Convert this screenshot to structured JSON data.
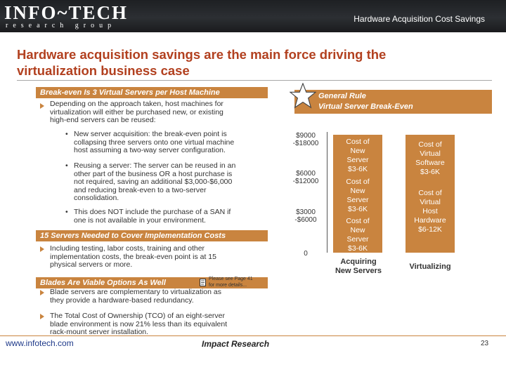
{
  "header": {
    "logo_main": "INFO~TECH",
    "logo_sub": "research group",
    "page_title": "Hardware Acquisition Cost Savings"
  },
  "slide": {
    "title_line1": "Hardware acquisition savings are the main force driving the",
    "title_line2": "virtualization business case"
  },
  "section1": {
    "heading": "Break-even Is 3 Virtual Servers per Host Machine",
    "bullet": {
      "lines": [
        "Depending on the approach taken, host machines for",
        "virtualization will either be purchased new, or existing",
        "high-end servers can be reused:"
      ]
    },
    "subbullets": [
      {
        "lines": [
          "New server acquisition: the break-even point is",
          "collapsing three servers onto one virtual machine",
          "host assuming a two-way server configuration."
        ]
      },
      {
        "lines": [
          "Reusing a server: The server can be reused in an",
          "other part of the business OR a host purchase is",
          "not required, saving an additional $3,000-$6,000",
          "and reducing break-even to a two-server",
          "consolidation."
        ]
      },
      {
        "lines": [
          "This does NOT include the purchase of a SAN if",
          "one is not available in your environment."
        ]
      }
    ]
  },
  "section2": {
    "heading": "15 Servers Needed to Cover Implementation Costs",
    "bullet": {
      "lines": [
        "Including testing, labor costs, training and other",
        "implementation costs, the break-even point is at 15",
        "physical servers or more."
      ]
    }
  },
  "section3": {
    "heading": "Blades Are Viable Options As Well",
    "note_line1": "Please see Page 41",
    "note_line2": "for more details...",
    "bullets": [
      {
        "lines": [
          "Blade servers are complementary to virtualization as",
          "they provide a hardware-based redundancy."
        ]
      },
      {
        "lines": [
          "The Total Cost of Ownership (TCO) of an eight-server",
          "blade environment is now 21% less than its equivalent",
          "rack-mount server installation."
        ]
      }
    ]
  },
  "general_rule": {
    "line1": "General Rule",
    "line2": "Virtual Server Break-Even"
  },
  "chart_data": {
    "type": "bar",
    "categories": [
      "Acquiring New Servers",
      "Virtualizing"
    ],
    "y_tick_labels": [
      {
        "line1": "$9000",
        "line2": "-$18000"
      },
      {
        "line1": "$6000",
        "line2": "-$12000"
      },
      {
        "line1": "$3000",
        "line2": "-$6000"
      },
      {
        "line1": "0",
        "line2": ""
      }
    ],
    "bars": [
      {
        "category": "Acquiring New Servers",
        "xlabel_lines": [
          "Acquiring",
          "New Servers"
        ],
        "segments": [
          {
            "lines": [
              "Cost of",
              "New",
              "Server",
              "$3-6K"
            ]
          },
          {
            "lines": [
              "Cost of",
              "New",
              "Server",
              "$3-6K"
            ]
          },
          {
            "lines": [
              "Cost of",
              "New",
              "Server",
              "$3-6K"
            ]
          }
        ]
      },
      {
        "category": "Virtualizing",
        "xlabel_lines": [
          "Virtualizing"
        ],
        "segments": [
          {
            "lines": [
              "Cost of",
              "Virtual",
              "Software",
              "$3-6K"
            ]
          },
          {
            "lines": [
              "Cost of",
              "Virtual",
              "Host",
              "Hardware",
              "$6-12K"
            ]
          }
        ]
      }
    ]
  },
  "footer": {
    "link": "www.infotech.com",
    "label": "Impact Research",
    "page_number": "23"
  },
  "colors": {
    "accent": "#c9843f",
    "title": "#b2401f",
    "header_bg": "#2c2f33"
  }
}
